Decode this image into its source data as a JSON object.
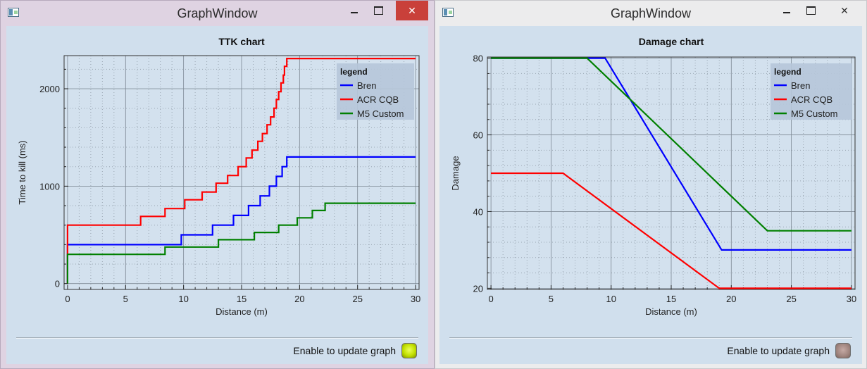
{
  "windows": [
    {
      "title": "GraphWindow",
      "toggle_label": "Enable to update graph",
      "toggle_on": true,
      "accent": "#c9403a"
    },
    {
      "title": "GraphWindow",
      "toggle_label": "Enable to update graph",
      "toggle_on": false
    }
  ],
  "chart_data": [
    {
      "type": "line",
      "title": "TTK chart",
      "xlabel": "Distance (m)",
      "ylabel": "Time to kill (ms)",
      "xlim": [
        -0.3,
        30.3
      ],
      "ylim": [
        -60,
        2340
      ],
      "xticks": [
        0,
        5,
        10,
        15,
        20,
        25,
        30
      ],
      "yticks": [
        0,
        1000,
        2000
      ],
      "grid": true,
      "legend": {
        "title": "legend",
        "placement": "top-right"
      },
      "series": [
        {
          "name": "Bren",
          "color": "#0000ff",
          "points": [
            [
              0,
              0
            ],
            [
              0,
              400
            ],
            [
              9.8,
              400
            ],
            [
              9.8,
              500
            ],
            [
              12.5,
              500
            ],
            [
              12.5,
              600
            ],
            [
              14.3,
              600
            ],
            [
              14.3,
              700
            ],
            [
              15.6,
              700
            ],
            [
              15.6,
              800
            ],
            [
              16.6,
              800
            ],
            [
              16.6,
              900
            ],
            [
              17.4,
              900
            ],
            [
              17.4,
              1000
            ],
            [
              18.0,
              1000
            ],
            [
              18.0,
              1100
            ],
            [
              18.5,
              1100
            ],
            [
              18.5,
              1200
            ],
            [
              18.9,
              1200
            ],
            [
              18.9,
              1300
            ],
            [
              30,
              1300
            ]
          ]
        },
        {
          "name": "ACR CQB",
          "color": "#ff0000",
          "points": [
            [
              0,
              0
            ],
            [
              0,
              600
            ],
            [
              6.3,
              600
            ],
            [
              6.3,
              690
            ],
            [
              8.4,
              690
            ],
            [
              8.4,
              770
            ],
            [
              10.1,
              770
            ],
            [
              10.1,
              860
            ],
            [
              11.6,
              860
            ],
            [
              11.6,
              940
            ],
            [
              12.8,
              940
            ],
            [
              12.8,
              1030
            ],
            [
              13.8,
              1030
            ],
            [
              13.8,
              1110
            ],
            [
              14.7,
              1110
            ],
            [
              14.7,
              1200
            ],
            [
              15.4,
              1200
            ],
            [
              15.4,
              1290
            ],
            [
              15.9,
              1290
            ],
            [
              15.9,
              1370
            ],
            [
              16.4,
              1370
            ],
            [
              16.4,
              1460
            ],
            [
              16.8,
              1460
            ],
            [
              16.8,
              1540
            ],
            [
              17.2,
              1540
            ],
            [
              17.2,
              1630
            ],
            [
              17.5,
              1630
            ],
            [
              17.5,
              1710
            ],
            [
              17.8,
              1710
            ],
            [
              17.8,
              1800
            ],
            [
              18.0,
              1800
            ],
            [
              18.0,
              1890
            ],
            [
              18.2,
              1890
            ],
            [
              18.2,
              1970
            ],
            [
              18.4,
              1970
            ],
            [
              18.4,
              2060
            ],
            [
              18.6,
              2060
            ],
            [
              18.6,
              2140
            ],
            [
              18.7,
              2140
            ],
            [
              18.7,
              2230
            ],
            [
              18.9,
              2230
            ],
            [
              18.9,
              2310
            ],
            [
              30,
              2310
            ]
          ]
        },
        {
          "name": "M5 Custom",
          "color": "#008000",
          "points": [
            [
              0,
              0
            ],
            [
              0,
              300
            ],
            [
              8.4,
              300
            ],
            [
              8.4,
              375
            ],
            [
              13.0,
              375
            ],
            [
              13.0,
              450
            ],
            [
              16.1,
              450
            ],
            [
              16.1,
              525
            ],
            [
              18.2,
              525
            ],
            [
              18.2,
              600
            ],
            [
              19.8,
              600
            ],
            [
              19.8,
              675
            ],
            [
              21.1,
              675
            ],
            [
              21.1,
              750
            ],
            [
              22.2,
              750
            ],
            [
              22.2,
              825
            ],
            [
              30,
              825
            ]
          ]
        }
      ]
    },
    {
      "type": "line",
      "title": "Damage chart",
      "xlabel": "Distance (m)",
      "ylabel": "Damage",
      "xlim": [
        -0.3,
        30.3
      ],
      "ylim": [
        19.7,
        80.3
      ],
      "xticks": [
        0,
        5,
        10,
        15,
        20,
        25,
        30
      ],
      "yticks": [
        20,
        40,
        60,
        80
      ],
      "grid": true,
      "legend": {
        "title": "legend",
        "placement": "top-right"
      },
      "series": [
        {
          "name": "Bren",
          "color": "#0000ff",
          "points": [
            [
              0,
              80
            ],
            [
              9.5,
              80
            ],
            [
              19.2,
              30
            ],
            [
              30,
              30
            ]
          ]
        },
        {
          "name": "ACR CQB",
          "color": "#ff0000",
          "points": [
            [
              0,
              50
            ],
            [
              6,
              50
            ],
            [
              19,
              20
            ],
            [
              30,
              20
            ]
          ]
        },
        {
          "name": "M5 Custom",
          "color": "#008000",
          "points": [
            [
              0,
              80
            ],
            [
              8,
              80
            ],
            [
              23,
              35
            ],
            [
              30,
              35
            ]
          ]
        }
      ]
    }
  ]
}
